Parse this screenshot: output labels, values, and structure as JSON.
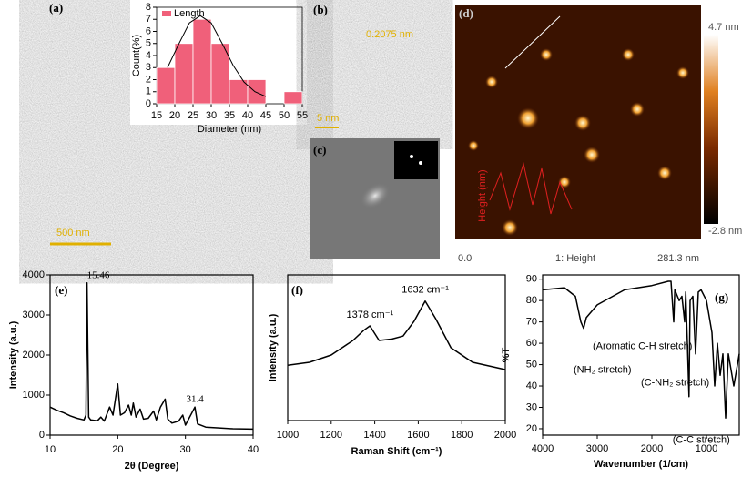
{
  "chart_data": [
    {
      "type": "histogram",
      "x_label": "Diameter (nm)",
      "y_label": "Count(%)",
      "bins": [
        15,
        20,
        25,
        30,
        35,
        40,
        45,
        50,
        55
      ],
      "series": [
        {
          "name": "Length",
          "color": "#f0607a",
          "values": [
            3,
            5,
            7,
            5,
            2,
            2,
            0,
            1
          ]
        }
      ],
      "fit": {
        "color": "#000000",
        "x": [
          18,
          21,
          24,
          27,
          30,
          33,
          36,
          39,
          42,
          45
        ],
        "values": [
          3.0,
          4.9,
          6.7,
          7.3,
          6.7,
          5.0,
          3.2,
          1.8,
          1.0,
          0.6
        ]
      },
      "xlim": [
        15,
        55
      ],
      "xticks": [
        15,
        20,
        25,
        30,
        35,
        40,
        45,
        50,
        55
      ],
      "ylim": [
        0,
        8
      ],
      "yticks": [
        0,
        1,
        2,
        3,
        4,
        5,
        6,
        7,
        8
      ]
    },
    {
      "type": "line",
      "panel_label": "(e)",
      "x_label": "2θ (Degree)",
      "y_label": "Intensity (a.u.)",
      "color": "#000000",
      "annotations": [
        "15.46",
        "31.4"
      ],
      "x": [
        10,
        11,
        12,
        13,
        14,
        15,
        15.3,
        15.46,
        15.7,
        16,
        17,
        17.5,
        18,
        18.8,
        19.3,
        20,
        20.4,
        21,
        21.6,
        22,
        22.3,
        22.7,
        23.3,
        23.8,
        24.5,
        25.3,
        25.7,
        26.3,
        27,
        27.4,
        28,
        29,
        29.6,
        30,
        31.4,
        31.8,
        33,
        35,
        37,
        40
      ],
      "values": [
        700,
        620,
        560,
        480,
        420,
        380,
        500,
        3800,
        450,
        380,
        360,
        450,
        350,
        700,
        500,
        1280,
        500,
        560,
        750,
        500,
        800,
        450,
        650,
        400,
        420,
        600,
        380,
        700,
        900,
        400,
        300,
        350,
        500,
        250,
        700,
        280,
        200,
        180,
        160,
        150
      ],
      "xlim": [
        10,
        40
      ],
      "xticks": [
        10,
        20,
        30,
        40
      ],
      "ylim": [
        0,
        4000
      ],
      "yticks": [
        0,
        1000,
        2000,
        3000,
        4000
      ]
    },
    {
      "type": "line",
      "panel_label": "(f)",
      "x_label": "Raman Shift (cm⁻¹)",
      "y_label": "Intensity (a.u.)",
      "color": "#000000",
      "annotations": [
        "1378 cm⁻¹",
        "1632 cm⁻¹"
      ],
      "x": [
        1000,
        1100,
        1200,
        1300,
        1350,
        1378,
        1420,
        1480,
        1530,
        1580,
        1632,
        1680,
        1750,
        1850,
        2000
      ],
      "values": [
        38,
        40,
        45,
        55,
        62,
        65,
        55,
        56,
        58,
        68,
        82,
        70,
        50,
        40,
        35
      ],
      "xlim": [
        1000,
        2000
      ],
      "xticks": [
        1000,
        1200,
        1400,
        1600,
        1800,
        2000
      ],
      "ylim": [
        0,
        100
      ]
    },
    {
      "type": "line",
      "panel_label": "(g)",
      "x_label": "Wavenumber (1/cm)",
      "y_label": "%T",
      "color": "#000000",
      "annotations": [
        "(Aromatic C-H stretch)",
        "(NH₂ stretch)",
        "(C-NH₂ stretch)",
        "(C-C stretch)"
      ],
      "x": [
        4000,
        3600,
        3400,
        3300,
        3250,
        3200,
        3000,
        2500,
        2000,
        1700,
        1650,
        1600,
        1580,
        1500,
        1450,
        1400,
        1380,
        1350,
        1320,
        1300,
        1250,
        1200,
        1150,
        1100,
        1000,
        900,
        850,
        800,
        750,
        700,
        650,
        600,
        500,
        400
      ],
      "values": [
        85,
        86,
        82,
        70,
        67,
        72,
        78,
        85,
        87,
        89,
        89,
        70,
        85,
        80,
        82,
        70,
        84,
        60,
        35,
        80,
        82,
        55,
        84,
        85,
        80,
        65,
        40,
        60,
        45,
        55,
        25,
        55,
        40,
        55
      ],
      "xlim": [
        4000,
        400
      ],
      "xticks": [
        4000,
        3000,
        2000,
        1000
      ],
      "ylim": [
        17,
        92
      ],
      "yticks": [
        20,
        30,
        40,
        50,
        60,
        70,
        80,
        90
      ]
    }
  ],
  "images": {
    "a": {
      "label": "(a)",
      "scale_bar": "500 nm"
    },
    "b": {
      "label": "(b)",
      "d_spacing": "0.2075 nm",
      "scale_bar": "5 nm"
    },
    "c": {
      "label": "(c)"
    },
    "d": {
      "label": "(d)",
      "colorbar_max": "4.7 nm",
      "colorbar_min": "-2.8 nm",
      "x_start": "0.0",
      "channel": "1: Height",
      "x_end": "281.3 nm",
      "inset_y_label": "Height (nm)"
    }
  }
}
